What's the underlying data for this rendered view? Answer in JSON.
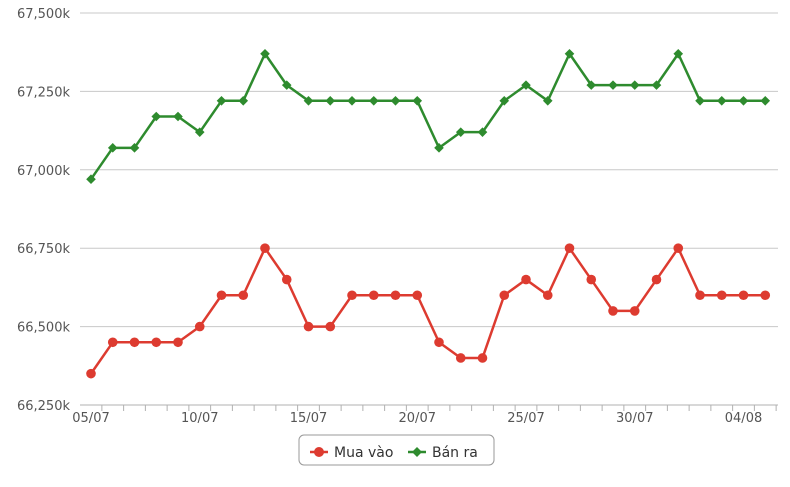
{
  "chart_data": {
    "type": "line",
    "x": [
      "05/07",
      "06/07",
      "07/07",
      "08/07",
      "09/07",
      "10/07",
      "11/07",
      "12/07",
      "13/07",
      "14/07",
      "15/07",
      "16/07",
      "17/07",
      "18/07",
      "19/07",
      "20/07",
      "21/07",
      "22/07",
      "23/07",
      "24/07",
      "25/07",
      "26/07",
      "27/07",
      "28/07",
      "29/07",
      "30/07",
      "31/07",
      "01/08",
      "02/08",
      "03/08",
      "04/08",
      "05/08"
    ],
    "x_tick_labels": [
      "05/07",
      "10/07",
      "15/07",
      "20/07",
      "25/07",
      "30/07",
      "04/08"
    ],
    "y_tick_labels": [
      "66,250k",
      "66,500k",
      "66,750k",
      "67,000k",
      "67,250k",
      "67,500k"
    ],
    "ylim": [
      66250,
      67500
    ],
    "series": [
      {
        "name": "Mua vào",
        "color": "#dd3b30",
        "marker": "circle",
        "values": [
          66350,
          66450,
          66450,
          66450,
          66450,
          66500,
          66600,
          66600,
          66750,
          66650,
          66500,
          66500,
          66600,
          66600,
          66600,
          66600,
          66450,
          66400,
          66400,
          66600,
          66650,
          66600,
          66750,
          66650,
          66550,
          66550,
          66650,
          66750,
          66600,
          66600,
          66600,
          66600
        ]
      },
      {
        "name": "Bán ra",
        "color": "#2e8b2e",
        "marker": "diamond",
        "values": [
          66970,
          67070,
          67070,
          67170,
          67170,
          67120,
          67220,
          67220,
          67370,
          67270,
          67220,
          67220,
          67220,
          67220,
          67220,
          67220,
          67070,
          67120,
          67120,
          67220,
          67270,
          67220,
          67370,
          67270,
          67270,
          67270,
          67270,
          67370,
          67220,
          67220,
          67220,
          67220
        ]
      }
    ],
    "grid": true,
    "legend": "bottom-center"
  }
}
